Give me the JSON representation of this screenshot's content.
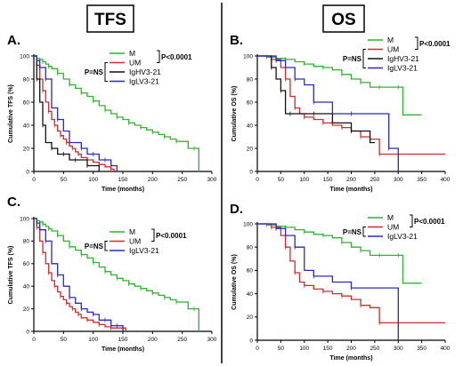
{
  "colors": {
    "M": "#2db52d",
    "UM": "#d62828",
    "IgHV3-21": "#111111",
    "IgLV3-21": "#2828c8"
  },
  "headers": {
    "left": "TFS",
    "right": "OS"
  },
  "chart_data": [
    {
      "id": "A",
      "panel_letter": "A.",
      "type": "line",
      "ylabel": "Cumulative TFS (%)",
      "xlabel": "Time (months)",
      "xlim": [
        0,
        300
      ],
      "ylim": [
        0,
        100
      ],
      "xticks": [
        0,
        50,
        100,
        150,
        200,
        250,
        300
      ],
      "yticks": [
        0,
        20,
        40,
        60,
        80,
        100
      ],
      "legend": [
        "M",
        "UM",
        "IgHV3-21",
        "IgLV3-21"
      ],
      "stats": {
        "ns": "P=NS",
        "sig": "P<0.0001"
      },
      "series": [
        {
          "name": "M",
          "x": [
            0,
            5,
            10,
            15,
            20,
            25,
            30,
            40,
            50,
            60,
            70,
            80,
            90,
            100,
            110,
            120,
            130,
            140,
            150,
            160,
            170,
            180,
            190,
            200,
            210,
            220,
            230,
            240,
            260,
            270,
            275,
            278
          ],
          "y": [
            100,
            98,
            97,
            95,
            93,
            91,
            89,
            85,
            80,
            75,
            72,
            68,
            65,
            61,
            57,
            53,
            50,
            47,
            45,
            42,
            40,
            38,
            36,
            34,
            32,
            30,
            28,
            26,
            20,
            20,
            20,
            0
          ]
        },
        {
          "name": "UM",
          "x": [
            0,
            5,
            10,
            15,
            20,
            25,
            30,
            35,
            40,
            45,
            50,
            55,
            60,
            65,
            70,
            75,
            80,
            90,
            100,
            110,
            120,
            130,
            135
          ],
          "y": [
            100,
            92,
            80,
            70,
            60,
            52,
            45,
            40,
            35,
            31,
            28,
            25,
            22,
            20,
            17,
            15,
            12,
            10,
            8,
            6,
            4,
            2,
            0
          ]
        },
        {
          "name": "IgHV3-21",
          "x": [
            0,
            5,
            10,
            15,
            20,
            30,
            40,
            50,
            60,
            70,
            80,
            90,
            100,
            110
          ],
          "y": [
            100,
            80,
            60,
            40,
            25,
            20,
            15,
            15,
            10,
            10,
            10,
            5,
            5,
            0
          ]
        },
        {
          "name": "IgLV3-21",
          "x": [
            0,
            5,
            10,
            20,
            30,
            40,
            50,
            60,
            70,
            80,
            90,
            100,
            110,
            120,
            130,
            140
          ],
          "y": [
            100,
            96,
            90,
            80,
            55,
            45,
            35,
            25,
            25,
            20,
            15,
            15,
            10,
            10,
            5,
            0
          ]
        }
      ]
    },
    {
      "id": "B",
      "panel_letter": "B.",
      "type": "line",
      "ylabel": "Cumulative OS (%)",
      "xlabel": "Time (months)",
      "xlim": [
        0,
        400
      ],
      "ylim": [
        0,
        100
      ],
      "xticks": [
        0,
        50,
        100,
        150,
        200,
        250,
        300,
        350,
        400
      ],
      "yticks": [
        0,
        20,
        40,
        60,
        80,
        100
      ],
      "legend": [
        "M",
        "UM",
        "IgHV3-21",
        "IgLV3-21"
      ],
      "stats": {
        "ns": "P=NS",
        "sig": "P<0.0001"
      },
      "series": [
        {
          "name": "M",
          "x": [
            0,
            20,
            40,
            60,
            80,
            100,
            120,
            140,
            160,
            180,
            200,
            220,
            240,
            260,
            280,
            300,
            310,
            350
          ],
          "y": [
            100,
            99,
            98,
            97,
            95,
            93,
            91,
            90,
            88,
            84,
            80,
            77,
            73,
            73,
            73,
            73,
            49,
            49
          ]
        },
        {
          "name": "UM",
          "x": [
            0,
            30,
            50,
            60,
            70,
            80,
            90,
            100,
            120,
            140,
            160,
            180,
            200,
            220,
            240,
            260,
            300,
            400
          ],
          "y": [
            100,
            97,
            90,
            80,
            65,
            55,
            50,
            47,
            45,
            42,
            40,
            38,
            35,
            30,
            28,
            15,
            15,
            15
          ]
        },
        {
          "name": "IgHV3-21",
          "x": [
            0,
            30,
            40,
            50,
            60,
            70,
            80,
            120,
            160,
            200,
            240,
            250
          ],
          "y": [
            100,
            90,
            80,
            70,
            50,
            50,
            50,
            50,
            42,
            35,
            25,
            25
          ]
        },
        {
          "name": "IgLV3-21",
          "x": [
            0,
            40,
            60,
            80,
            100,
            120,
            160,
            200,
            240,
            280,
            300
          ],
          "y": [
            100,
            96,
            90,
            80,
            75,
            60,
            50,
            50,
            50,
            20,
            0
          ]
        }
      ]
    },
    {
      "id": "C",
      "panel_letter": "C.",
      "type": "line",
      "ylabel": "Cumulative TFS (%)",
      "xlabel": "Time (months)",
      "xlim": [
        0,
        300
      ],
      "ylim": [
        0,
        100
      ],
      "xticks": [
        0,
        50,
        100,
        150,
        200,
        250,
        300
      ],
      "yticks": [
        0,
        20,
        40,
        60,
        80,
        100
      ],
      "legend": [
        "M",
        "UM",
        "IgLV3-21"
      ],
      "stats": {
        "ns": "P=NS",
        "sig": "P<0.0001"
      },
      "series": [
        {
          "name": "M",
          "x": [
            0,
            5,
            10,
            15,
            20,
            25,
            30,
            40,
            50,
            60,
            70,
            80,
            90,
            100,
            110,
            120,
            130,
            140,
            150,
            160,
            170,
            180,
            190,
            200,
            210,
            220,
            230,
            240,
            260,
            270,
            275,
            278
          ],
          "y": [
            100,
            98,
            97,
            95,
            93,
            91,
            89,
            85,
            80,
            75,
            72,
            68,
            65,
            61,
            57,
            53,
            50,
            47,
            45,
            42,
            40,
            38,
            36,
            34,
            32,
            30,
            28,
            26,
            20,
            20,
            20,
            0
          ]
        },
        {
          "name": "UM",
          "x": [
            0,
            5,
            10,
            15,
            20,
            25,
            30,
            35,
            40,
            45,
            50,
            55,
            60,
            65,
            70,
            75,
            80,
            90,
            100,
            110,
            120,
            130,
            140,
            150,
            155
          ],
          "y": [
            100,
            92,
            80,
            70,
            60,
            52,
            45,
            40,
            35,
            31,
            28,
            25,
            22,
            20,
            17,
            15,
            12,
            10,
            8,
            6,
            4,
            3,
            3,
            3,
            0
          ]
        },
        {
          "name": "IgLV3-21",
          "x": [
            0,
            5,
            10,
            20,
            30,
            40,
            50,
            60,
            70,
            80,
            90,
            100,
            110,
            120,
            130,
            140,
            150
          ],
          "y": [
            100,
            96,
            90,
            80,
            60,
            50,
            40,
            30,
            25,
            20,
            17,
            15,
            10,
            10,
            5,
            5,
            0
          ]
        }
      ]
    },
    {
      "id": "D",
      "panel_letter": "D.",
      "type": "line",
      "ylabel": "Cumulative OS (%)",
      "xlabel": "Time (months)",
      "xlim": [
        0,
        400
      ],
      "ylim": [
        0,
        100
      ],
      "xticks": [
        0,
        50,
        100,
        150,
        200,
        250,
        300,
        350,
        400
      ],
      "yticks": [
        0,
        20,
        40,
        60,
        80,
        100
      ],
      "legend": [
        "M",
        "UM",
        "IgLV3-21"
      ],
      "stats": {
        "ns": "P=NS",
        "sig": "P<0.0001"
      },
      "series": [
        {
          "name": "M",
          "x": [
            0,
            20,
            40,
            60,
            80,
            100,
            120,
            140,
            160,
            180,
            200,
            220,
            240,
            260,
            280,
            300,
            310,
            350
          ],
          "y": [
            100,
            99,
            98,
            97,
            95,
            93,
            91,
            90,
            88,
            84,
            80,
            77,
            73,
            73,
            73,
            73,
            49,
            49
          ]
        },
        {
          "name": "UM",
          "x": [
            0,
            30,
            50,
            60,
            70,
            80,
            90,
            100,
            120,
            140,
            160,
            180,
            200,
            220,
            240,
            260,
            300,
            400
          ],
          "y": [
            100,
            97,
            90,
            80,
            68,
            58,
            50,
            47,
            44,
            42,
            40,
            38,
            35,
            30,
            28,
            15,
            15,
            15
          ]
        },
        {
          "name": "IgLV3-21",
          "x": [
            0,
            40,
            60,
            80,
            100,
            120,
            160,
            200,
            240,
            300
          ],
          "y": [
            100,
            96,
            90,
            80,
            60,
            55,
            50,
            45,
            45,
            0
          ]
        }
      ]
    }
  ]
}
